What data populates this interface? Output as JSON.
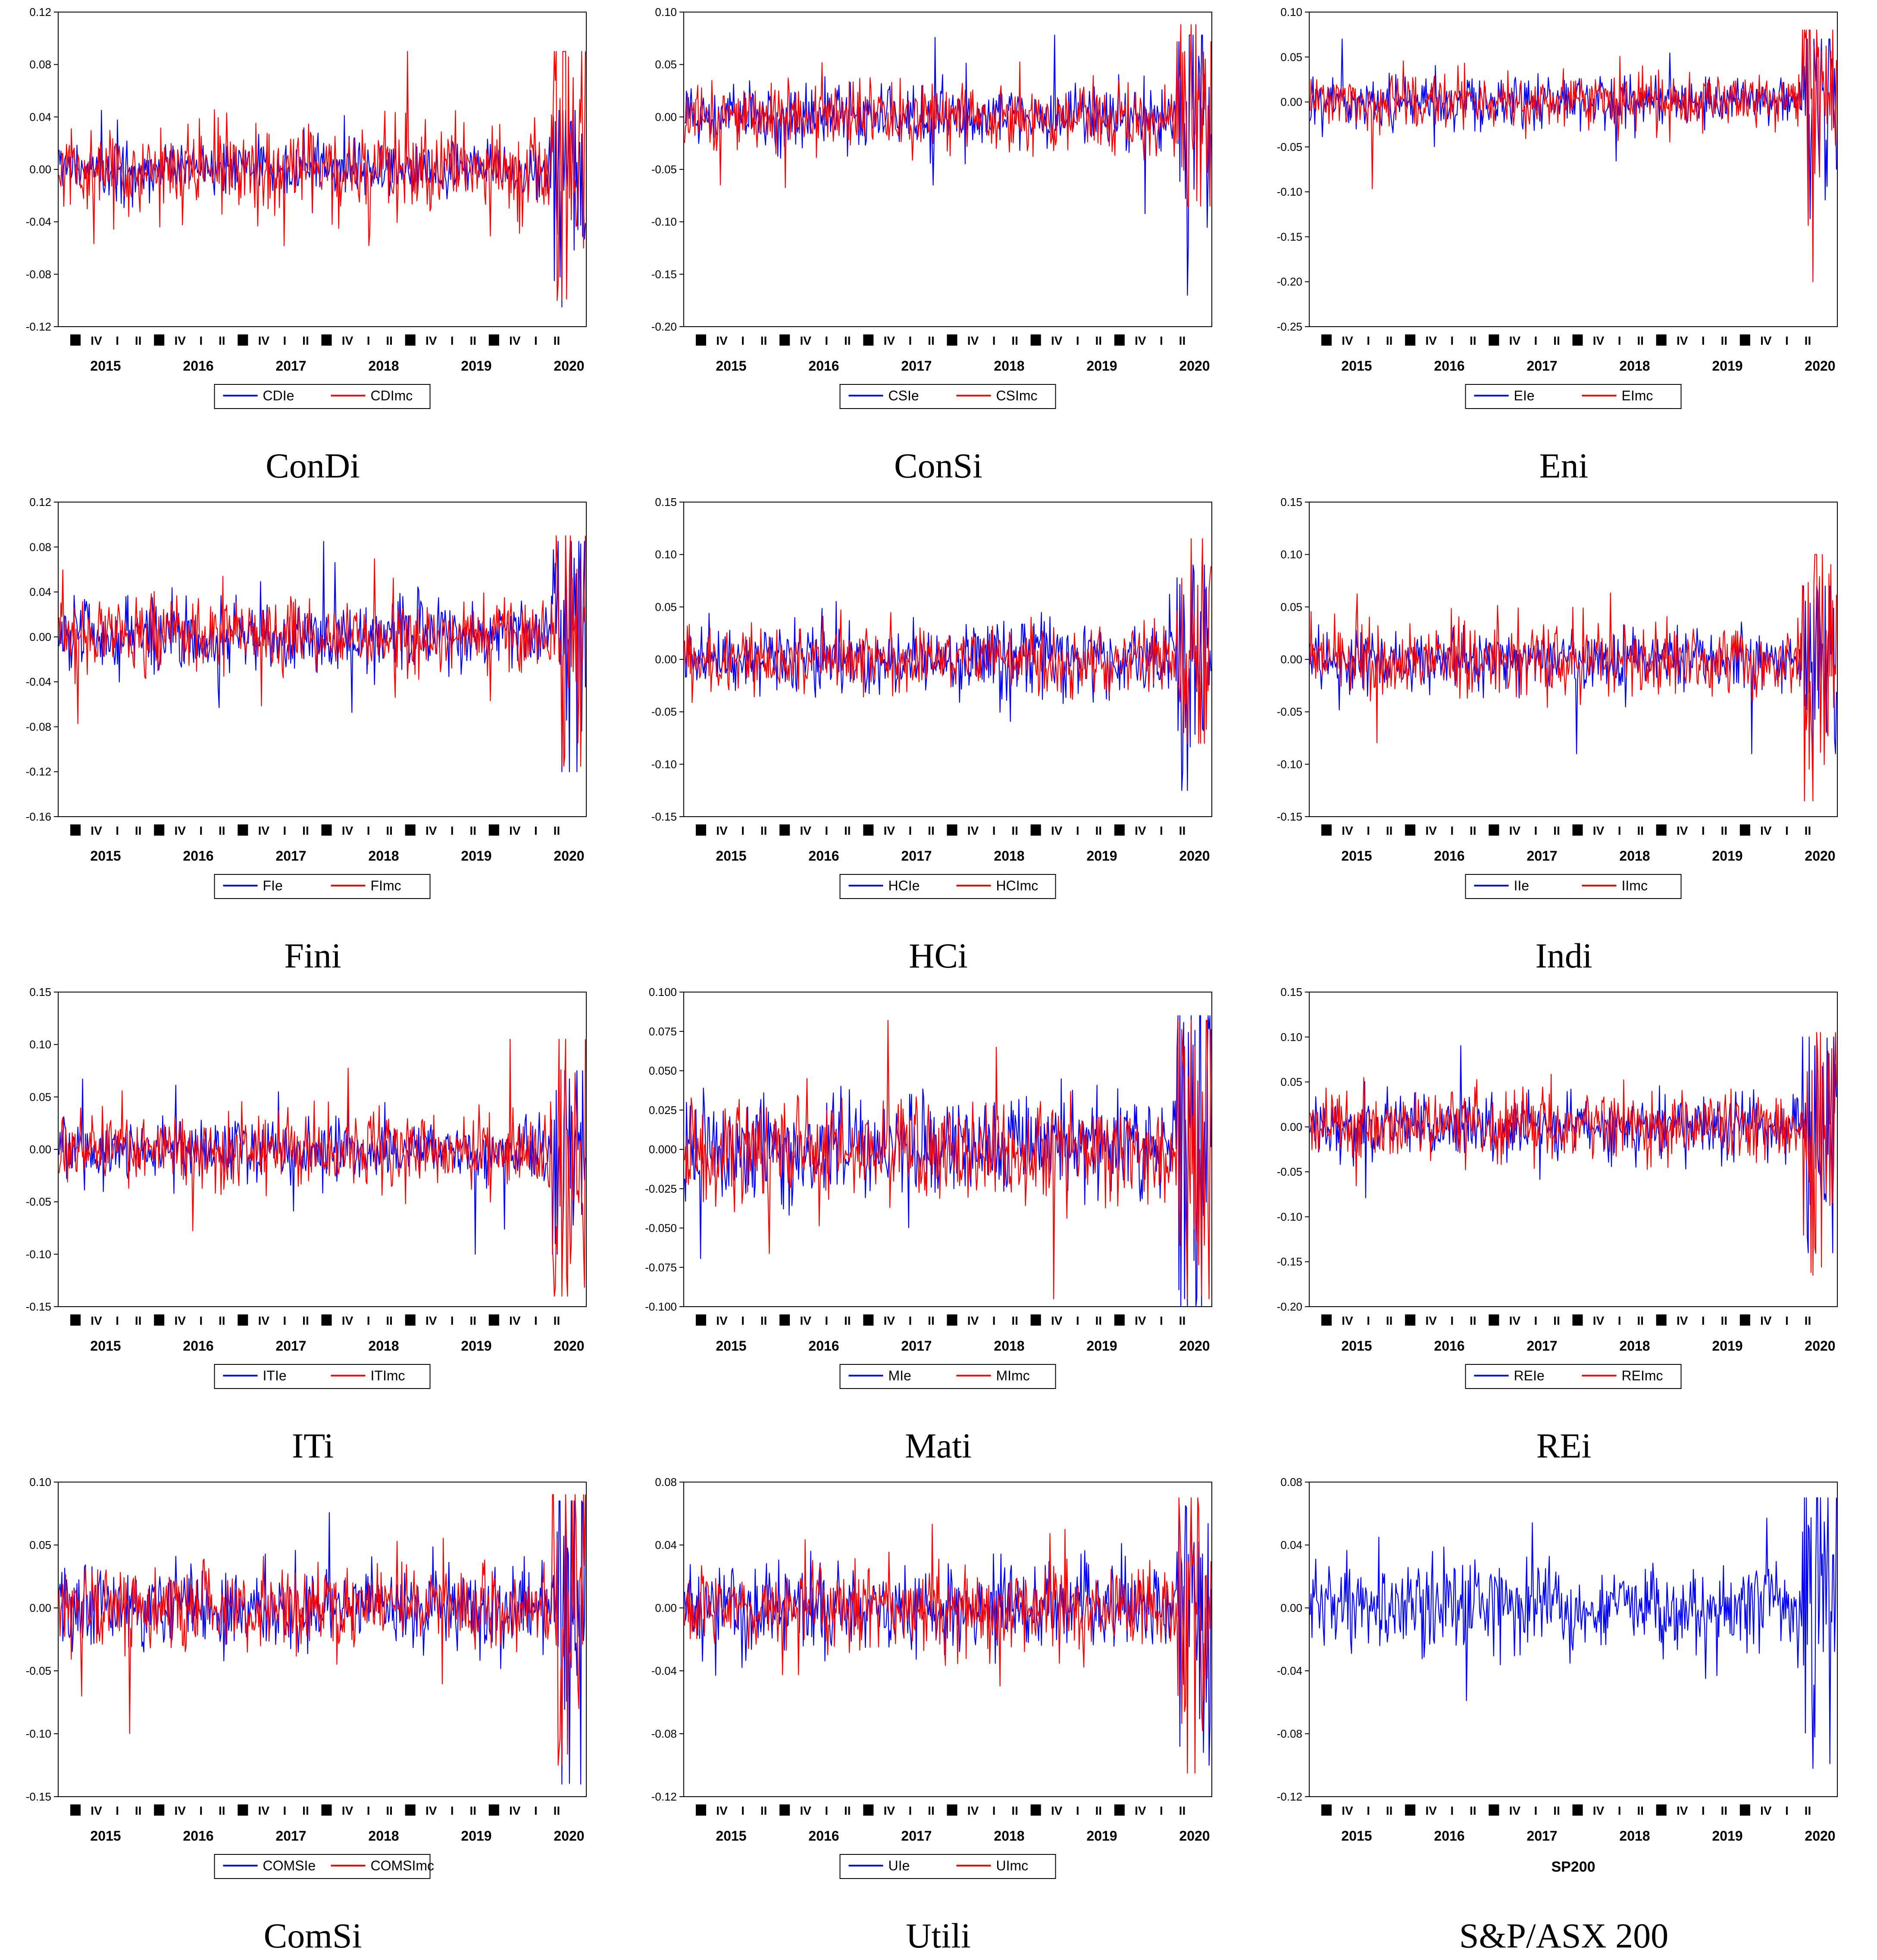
{
  "colors": {
    "estimated": "#0000ff",
    "imc": "#ff0000",
    "frame": "#000000"
  },
  "shared_x_axis": {
    "years": [
      "2015",
      "2016",
      "2017",
      "2018",
      "2019",
      "2020"
    ],
    "quarter_marks": [
      "I",
      "II",
      "III",
      "IV"
    ]
  },
  "chart_data": [
    {
      "type": "line",
      "caption": "ConDi",
      "x": [
        "2014-07-01",
        "2020-06-30"
      ],
      "ylim": [
        -0.12,
        0.12
      ],
      "yticks": [
        "0.12",
        "0.08",
        "0.04",
        "0.00",
        "-0.04",
        "-0.08",
        "-0.12"
      ],
      "series": [
        {
          "name": "CDIe",
          "color": "#0000ff",
          "approx_range": [
            -0.105,
            0.045
          ]
        },
        {
          "name": "CDImc",
          "color": "#ff0000",
          "approx_range": [
            -0.1,
            0.09
          ]
        }
      ]
    },
    {
      "type": "line",
      "caption": "ConSi",
      "x": [
        "2014-07-01",
        "2020-06-30"
      ],
      "ylim": [
        -0.2,
        0.1
      ],
      "yticks": [
        "0.10",
        "0.05",
        "0.00",
        "-0.05",
        "-0.10",
        "-0.15",
        "-0.20"
      ],
      "series": [
        {
          "name": "CSIe",
          "color": "#0000ff",
          "approx_range": [
            -0.17,
            0.078
          ]
        },
        {
          "name": "CSImc",
          "color": "#ff0000",
          "approx_range": [
            -0.085,
            0.088
          ]
        }
      ]
    },
    {
      "type": "line",
      "caption": "Eni",
      "x": [
        "2014-07-01",
        "2020-06-30"
      ],
      "ylim": [
        -0.25,
        0.1
      ],
      "yticks": [
        "0.10",
        "0.05",
        "0.00",
        "-0.05",
        "-0.10",
        "-0.15",
        "-0.20",
        "-0.25"
      ],
      "series": [
        {
          "name": "EIe",
          "color": "#0000ff",
          "approx_range": [
            -0.19,
            0.07
          ]
        },
        {
          "name": "EImc",
          "color": "#ff0000",
          "approx_range": [
            -0.2,
            0.08
          ]
        }
      ]
    },
    {
      "type": "line",
      "caption": "Fini",
      "x": [
        "2014-07-01",
        "2020-06-30"
      ],
      "ylim": [
        -0.16,
        0.12
      ],
      "yticks": [
        "0.12",
        "0.08",
        "0.04",
        "0.00",
        "-0.04",
        "-0.08",
        "-0.12",
        "-0.16"
      ],
      "series": [
        {
          "name": "FIe",
          "color": "#0000ff",
          "approx_range": [
            -0.12,
            0.085
          ]
        },
        {
          "name": "FImc",
          "color": "#ff0000",
          "approx_range": [
            -0.115,
            0.09
          ]
        }
      ]
    },
    {
      "type": "line",
      "caption": "HCi",
      "x": [
        "2014-07-01",
        "2020-06-30"
      ],
      "ylim": [
        -0.15,
        0.15
      ],
      "yticks": [
        "0.15",
        "0.10",
        "0.05",
        "0.00",
        "-0.05",
        "-0.10",
        "-0.15"
      ],
      "series": [
        {
          "name": "HCIe",
          "color": "#0000ff",
          "approx_range": [
            -0.125,
            0.09
          ]
        },
        {
          "name": "HCImc",
          "color": "#ff0000",
          "approx_range": [
            -0.08,
            0.115
          ]
        }
      ]
    },
    {
      "type": "line",
      "caption": "Indi",
      "x": [
        "2014-07-01",
        "2020-06-30"
      ],
      "ylim": [
        -0.15,
        0.15
      ],
      "yticks": [
        "0.15",
        "0.10",
        "0.05",
        "0.00",
        "-0.05",
        "-0.10",
        "-0.15"
      ],
      "series": [
        {
          "name": "IIe",
          "color": "#0000ff",
          "approx_range": [
            -0.09,
            0.07
          ]
        },
        {
          "name": "IImc",
          "color": "#ff0000",
          "approx_range": [
            -0.135,
            0.1
          ]
        }
      ]
    },
    {
      "type": "line",
      "caption": "ITi",
      "x": [
        "2014-07-01",
        "2020-06-30"
      ],
      "ylim": [
        -0.15,
        0.15
      ],
      "yticks": [
        "0.15",
        "0.10",
        "0.05",
        "0.00",
        "-0.05",
        "-0.10",
        "-0.15"
      ],
      "series": [
        {
          "name": "ITIe",
          "color": "#0000ff",
          "approx_range": [
            -0.1,
            0.075
          ]
        },
        {
          "name": "ITImc",
          "color": "#ff0000",
          "approx_range": [
            -0.14,
            0.105
          ]
        }
      ]
    },
    {
      "type": "line",
      "caption": "Mati",
      "x": [
        "2014-07-01",
        "2020-06-30"
      ],
      "ylim": [
        -0.1,
        0.1
      ],
      "yticks": [
        "0.100",
        "0.075",
        "0.050",
        "0.025",
        "0.000",
        "-0.025",
        "-0.050",
        "-0.075",
        "-0.100"
      ],
      "series": [
        {
          "name": "MIe",
          "color": "#0000ff",
          "approx_range": [
            -0.1,
            0.085
          ]
        },
        {
          "name": "MImc",
          "color": "#ff0000",
          "approx_range": [
            -0.095,
            0.082
          ]
        }
      ]
    },
    {
      "type": "line",
      "caption": "REi",
      "x": [
        "2014-07-01",
        "2020-06-30"
      ],
      "ylim": [
        -0.2,
        0.15
      ],
      "yticks": [
        "0.15",
        "0.10",
        "0.05",
        "0.00",
        "-0.05",
        "-0.10",
        "-0.15",
        "-0.20"
      ],
      "series": [
        {
          "name": "REIe",
          "color": "#0000ff",
          "approx_range": [
            -0.14,
            0.1
          ]
        },
        {
          "name": "REImc",
          "color": "#ff0000",
          "approx_range": [
            -0.165,
            0.105
          ]
        }
      ]
    },
    {
      "type": "line",
      "caption": "ComSi",
      "x": [
        "2014-07-01",
        "2020-06-30"
      ],
      "ylim": [
        -0.15,
        0.1
      ],
      "yticks": [
        "0.10",
        "0.05",
        "0.00",
        "-0.05",
        "-0.10",
        "-0.15"
      ],
      "series": [
        {
          "name": "COMSIe",
          "color": "#0000ff",
          "approx_range": [
            -0.14,
            0.085
          ]
        },
        {
          "name": "COMSImc",
          "color": "#ff0000",
          "approx_range": [
            -0.125,
            0.09
          ]
        }
      ]
    },
    {
      "type": "line",
      "caption": "Utili",
      "x": [
        "2014-07-01",
        "2020-06-30"
      ],
      "ylim": [
        -0.12,
        0.08
      ],
      "yticks": [
        "0.08",
        "0.04",
        "0.00",
        "-0.04",
        "-0.08",
        "-0.12"
      ],
      "series": [
        {
          "name": "UIe",
          "color": "#0000ff",
          "approx_range": [
            -0.1,
            0.065
          ]
        },
        {
          "name": "UImc",
          "color": "#ff0000",
          "approx_range": [
            -0.105,
            0.07
          ]
        }
      ]
    },
    {
      "type": "line",
      "caption": "S&P/ASX 200",
      "x": [
        "2014-07-01",
        "2020-06-30"
      ],
      "ylim": [
        -0.12,
        0.08
      ],
      "yticks": [
        "0.08",
        "0.04",
        "0.00",
        "-0.04",
        "-0.08",
        "-0.12"
      ],
      "legend_label": "SP200",
      "series": [
        {
          "name": "SP200",
          "color": "#0000ff",
          "approx_range": [
            -0.102,
            0.07
          ]
        }
      ]
    }
  ]
}
